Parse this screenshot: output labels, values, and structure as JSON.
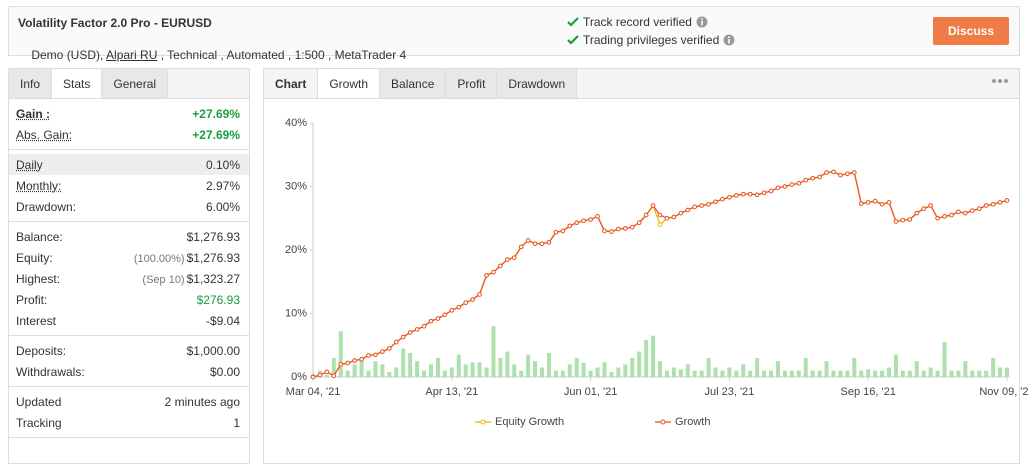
{
  "header": {
    "title": "Volatility Factor 2.0 Pro - EURUSD",
    "subtitle": [
      "Demo (USD), ",
      "Alpari RU",
      " , Technical , Automated , 1:500 , MetaTrader 4"
    ],
    "verified": [
      "Track record verified",
      "Trading privileges verified"
    ],
    "button": "Discuss"
  },
  "stats": {
    "tabs": [
      "Info",
      "Stats",
      "General"
    ],
    "active_tab": 1,
    "groups": [
      [
        {
          "label": "Gain :",
          "value": "+27.69%",
          "color": "#1a9e3f",
          "dotted": true,
          "bold": true
        },
        {
          "label": "Abs. Gain:",
          "value": "+27.69%",
          "color": "#1a9e3f",
          "dotted": true
        }
      ],
      [
        {
          "label": "Daily",
          "value": "0.10%",
          "dotted": true,
          "highlight": true
        },
        {
          "label": "Monthly:",
          "value": "2.97%",
          "dotted": true
        },
        {
          "label": "Drawdown:",
          "value": "6.00%"
        }
      ],
      [
        {
          "label": "Balance:",
          "value": "$1,276.93"
        },
        {
          "label": "Equity:",
          "note": "(100.00%)",
          "value": "$1,276.93"
        },
        {
          "label": "Highest:",
          "note": "(Sep 10)",
          "value": "$1,323.27"
        },
        {
          "label": "Profit:",
          "value": "$276.93",
          "color": "#1a9e3f"
        },
        {
          "label": "Interest",
          "value": "-$9.04"
        }
      ],
      [
        {
          "label": "Deposits:",
          "value": "$1,000.00"
        },
        {
          "label": "Withdrawals:",
          "value": "$0.00"
        }
      ],
      [
        {
          "label": "Updated",
          "value": "2 minutes ago"
        },
        {
          "label": "Tracking",
          "value": "1"
        }
      ]
    ]
  },
  "chart_tabs": {
    "label": "Chart",
    "tabs": [
      "Growth",
      "Balance",
      "Profit",
      "Drawdown"
    ],
    "active_tab": 0
  },
  "chart_data": {
    "type": "line",
    "categories": [
      "Mar 04, '21",
      null,
      null,
      null,
      null,
      null,
      null,
      null,
      null,
      null,
      null,
      null,
      null,
      null,
      null,
      null,
      null,
      null,
      null,
      null,
      "Apr 13, '21",
      null,
      null,
      null,
      null,
      null,
      null,
      null,
      null,
      null,
      null,
      null,
      null,
      null,
      null,
      null,
      null,
      null,
      null,
      null,
      "Jun 01, '21",
      null,
      null,
      null,
      null,
      null,
      null,
      null,
      null,
      null,
      null,
      null,
      null,
      null,
      null,
      null,
      null,
      null,
      null,
      null,
      "Jul 23, '21",
      null,
      null,
      null,
      null,
      null,
      null,
      null,
      null,
      null,
      null,
      null,
      null,
      null,
      null,
      null,
      null,
      null,
      null,
      null,
      "Sep 16, '21",
      null,
      null,
      null,
      null,
      null,
      null,
      null,
      null,
      null,
      null,
      null,
      null,
      null,
      null,
      null,
      null,
      null,
      null,
      null,
      "Nov 09, '21"
    ],
    "series": [
      {
        "name": "Equity Growth",
        "color": "#f2b705",
        "values": [
          0,
          0.3,
          0.8,
          0.2,
          2.0,
          2.2,
          2.6,
          2.8,
          3.4,
          3.5,
          4.0,
          4.5,
          5.5,
          6.3,
          7.0,
          7.5,
          8.0,
          8.8,
          9.2,
          9.8,
          10.5,
          11.0,
          11.7,
          12.2,
          13.0,
          16.0,
          16.5,
          17.5,
          18.5,
          18.8,
          20.5,
          21.5,
          21.0,
          21.0,
          21.2,
          22.8,
          23.0,
          23.8,
          24.3,
          24.6,
          24.8,
          25.3,
          23.0,
          22.9,
          23.3,
          23.4,
          23.6,
          24.3,
          25.5,
          27.0,
          24.0,
          25.0,
          25.2,
          25.8,
          26.3,
          26.8,
          27.0,
          27.2,
          27.6,
          28.0,
          28.3,
          28.6,
          28.8,
          28.8,
          28.7,
          29.0,
          29.3,
          29.8,
          30.0,
          30.3,
          30.5,
          31.0,
          31.3,
          31.5,
          32.2,
          32.3,
          31.8,
          32.0,
          32.2,
          27.3,
          27.5,
          27.7,
          27.2,
          27.5,
          24.5,
          24.7,
          24.8,
          25.8,
          26.5,
          27.0,
          25.0,
          25.3,
          25.5,
          26.0,
          25.8,
          26.2,
          26.5,
          27.0,
          27.2,
          27.5,
          27.8
        ]
      },
      {
        "name": "Growth",
        "color": "#e8542a",
        "values": [
          0,
          0.3,
          0.8,
          0.2,
          2.0,
          2.2,
          2.6,
          2.8,
          3.4,
          3.5,
          4.0,
          4.5,
          5.5,
          6.3,
          7.0,
          7.5,
          8.0,
          8.8,
          9.2,
          9.8,
          10.5,
          11.0,
          11.7,
          12.2,
          13.0,
          16.0,
          16.5,
          17.5,
          18.5,
          18.8,
          20.5,
          21.5,
          21.0,
          21.0,
          21.2,
          22.8,
          23.0,
          23.8,
          24.3,
          24.6,
          24.8,
          25.3,
          23.0,
          22.9,
          23.3,
          23.4,
          23.6,
          24.3,
          25.5,
          27.0,
          25.5,
          25.0,
          25.2,
          25.8,
          26.3,
          26.8,
          27.0,
          27.2,
          27.6,
          28.0,
          28.3,
          28.6,
          28.8,
          28.8,
          28.7,
          29.0,
          29.3,
          29.8,
          30.0,
          30.3,
          30.5,
          31.0,
          31.3,
          31.5,
          32.2,
          32.3,
          31.8,
          32.0,
          32.2,
          27.3,
          27.5,
          27.7,
          27.2,
          27.5,
          24.5,
          24.7,
          24.8,
          25.8,
          26.5,
          27.0,
          25.0,
          25.3,
          25.5,
          26.0,
          25.8,
          26.2,
          26.5,
          27.0,
          27.2,
          27.5,
          27.8
        ]
      },
      {
        "type": "bar",
        "color": "#ace0ac",
        "values": [
          0.5,
          1.0,
          0.3,
          3.0,
          7.2,
          1.0,
          2.0,
          3.0,
          1.0,
          2.5,
          2.0,
          0.8,
          1.5,
          4.5,
          3.8,
          2.5,
          1.0,
          2.0,
          3.0,
          1.0,
          1.5,
          3.5,
          2.0,
          2.3,
          2.3,
          1.5,
          8.0,
          3.0,
          4.0,
          2.0,
          1.0,
          3.5,
          2.5,
          1.5,
          3.8,
          1.0,
          1.0,
          2.0,
          3.0,
          2.2,
          1.0,
          1.5,
          2.3,
          0.8,
          1.5,
          2.0,
          3.0,
          4.0,
          5.8,
          6.5,
          2.5,
          1.0,
          1.5,
          1.2,
          2.0,
          1.0,
          1.0,
          3.0,
          1.5,
          1.0,
          1.5,
          1.0,
          2.0,
          1.0,
          3.0,
          1.0,
          1.0,
          2.5,
          1.0,
          1.0,
          1.0,
          3.0,
          1.0,
          1.0,
          2.5,
          1.0,
          1.0,
          1.0,
          3.0,
          1.0,
          1.2,
          1.0,
          1.0,
          1.5,
          3.5,
          1.0,
          1.0,
          2.5,
          1.0,
          1.5,
          1.0,
          5.5,
          1.0,
          1.0,
          2.5,
          1.0,
          1.0,
          1.0,
          3.0,
          1.5,
          1.5
        ]
      }
    ],
    "ylim": [
      0,
      40
    ],
    "yticks": [
      {
        "value": 0,
        "label": "0%"
      },
      {
        "value": 10,
        "label": "10%"
      },
      {
        "value": 20,
        "label": "20%"
      },
      {
        "value": 30,
        "label": "30%"
      },
      {
        "value": 40,
        "label": "40%"
      }
    ],
    "grid": false,
    "legend": "bottom"
  }
}
